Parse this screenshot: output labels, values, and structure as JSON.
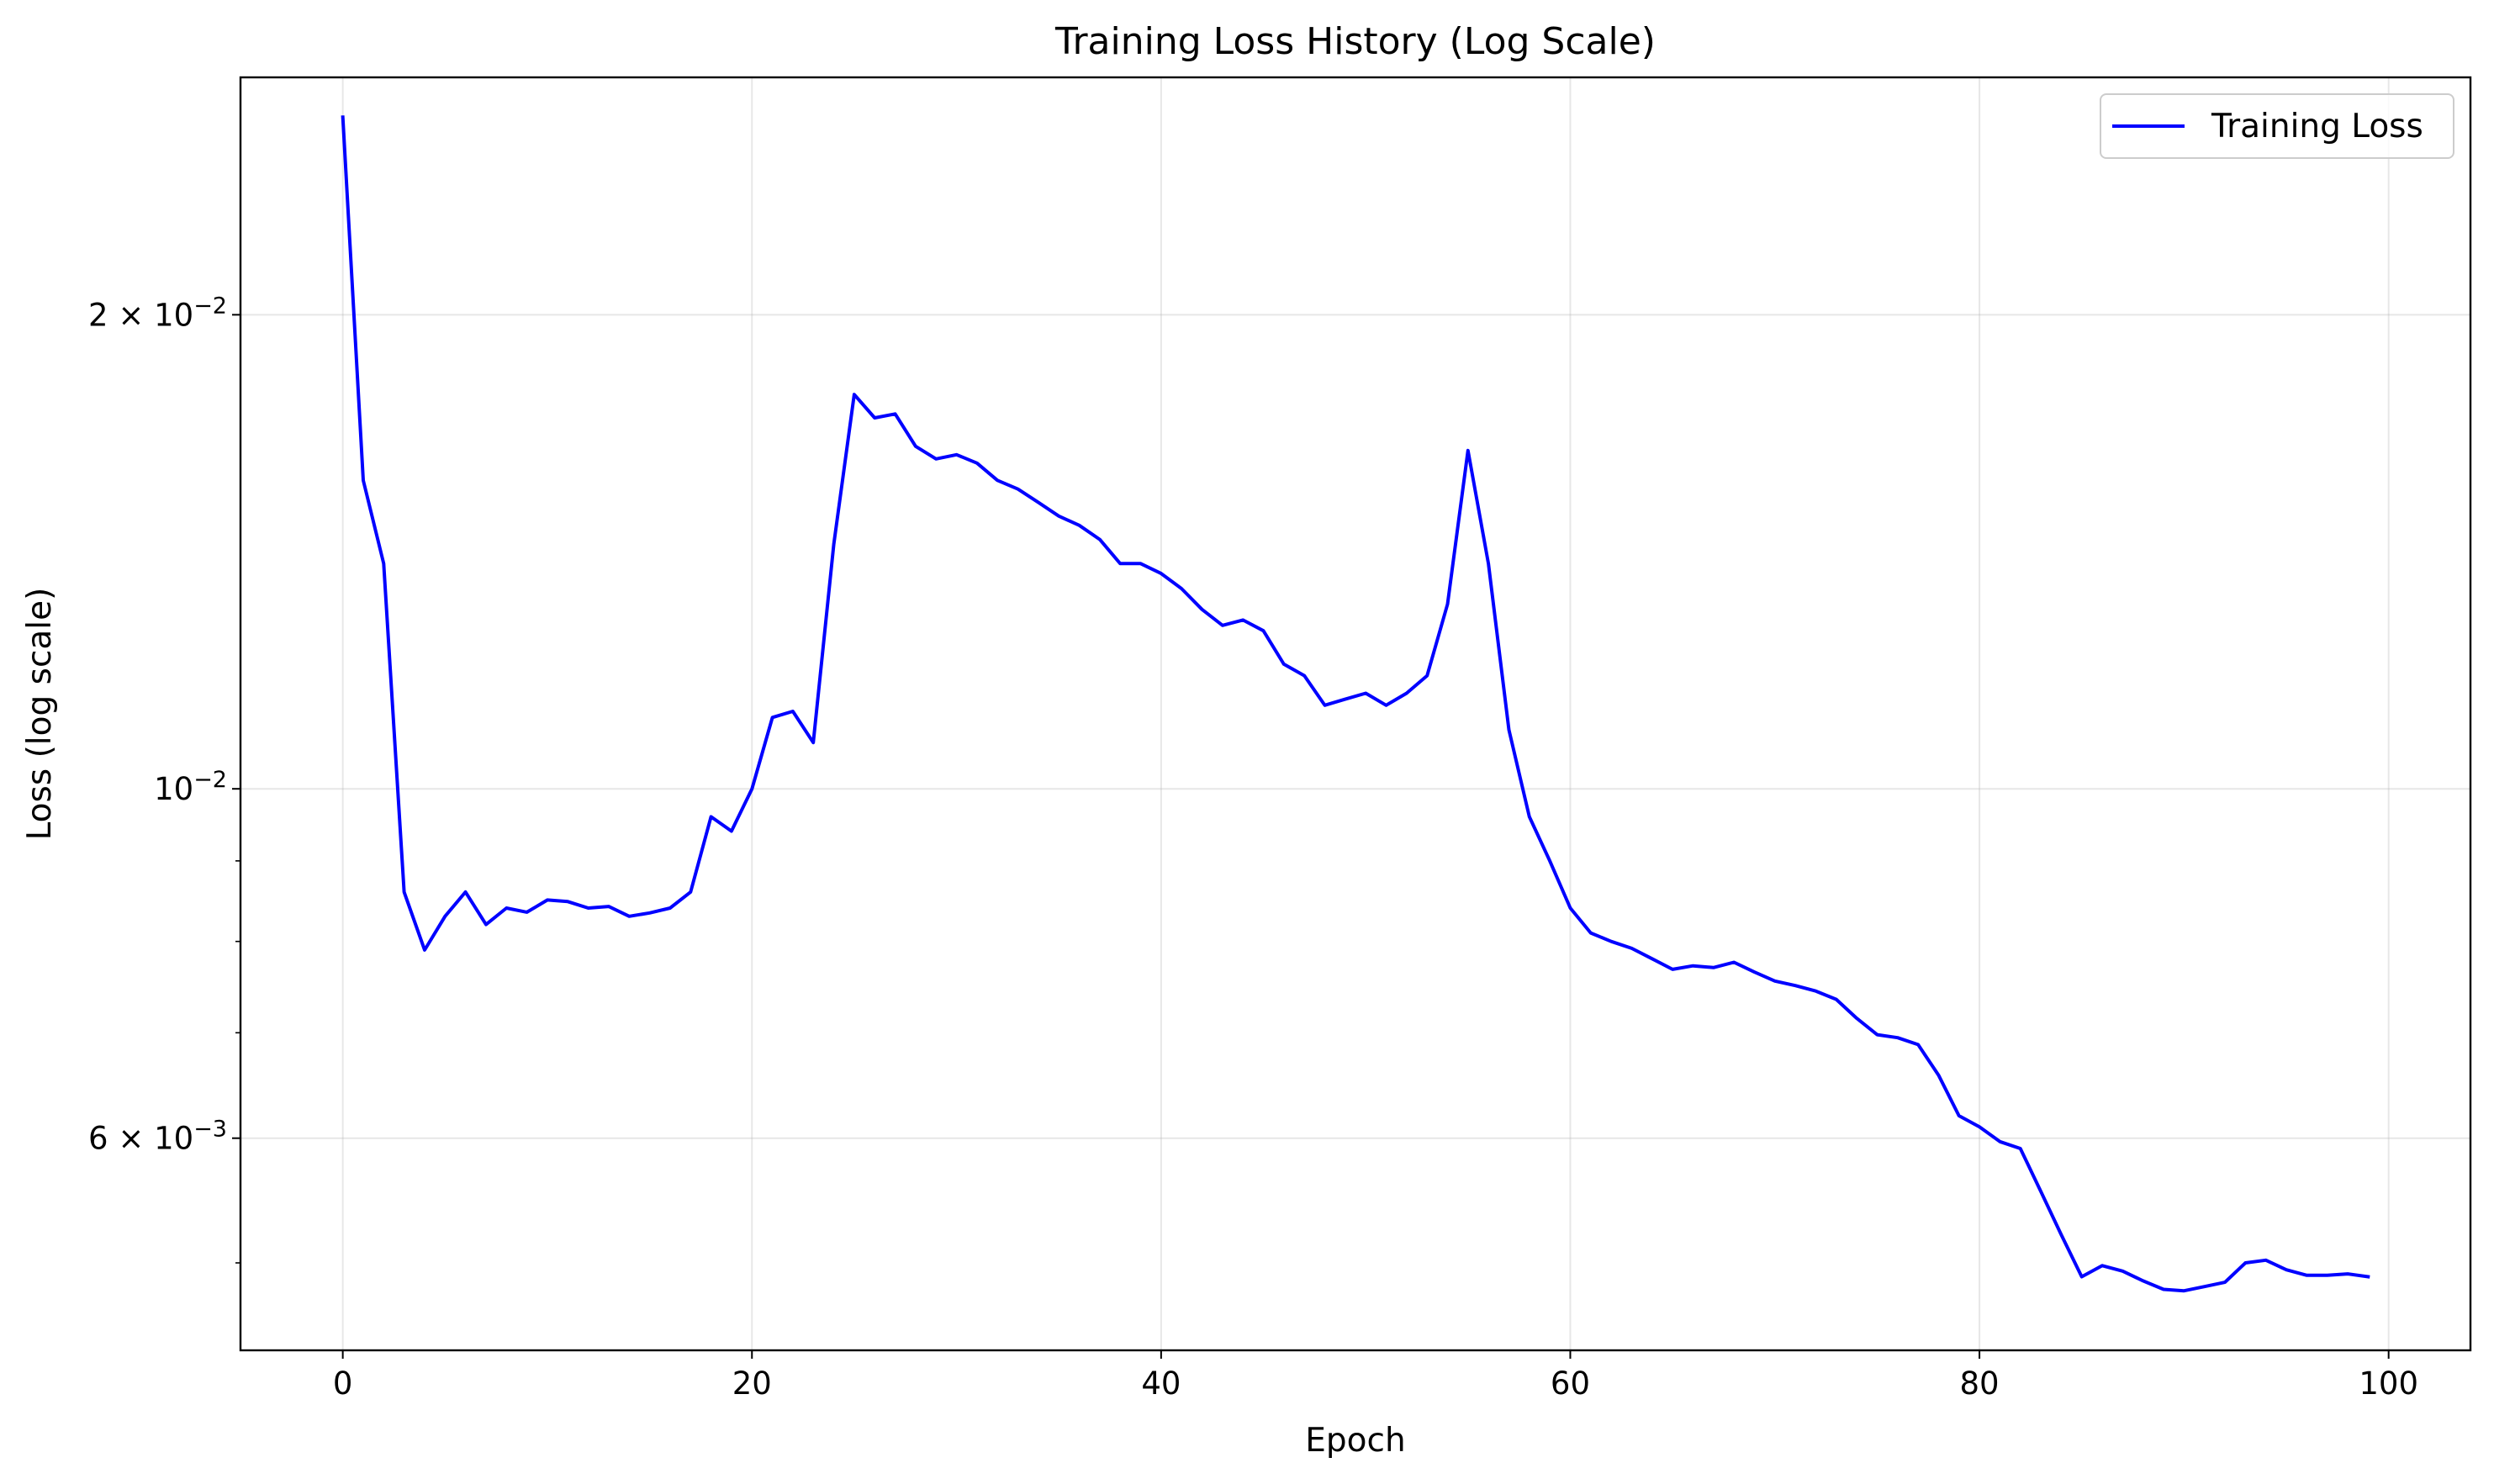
{
  "chart_data": {
    "type": "line",
    "title": "Training Loss History (Log Scale)",
    "xlabel": "Epoch",
    "ylabel": "Loss (log scale)",
    "xlim": [
      -5,
      104
    ],
    "ylim": [
      0.0044,
      0.0283
    ],
    "yscale": "log",
    "grid": true,
    "legend_position": "top-right",
    "x_ticks": [
      0,
      20,
      40,
      60,
      80,
      100
    ],
    "y_ticks": [
      {
        "value": 0.02,
        "mantissa": "2",
        "exponent": "−2"
      },
      {
        "value": 0.01,
        "mantissa": "",
        "exponent": "−2"
      },
      {
        "value": 0.006,
        "mantissa": "6",
        "exponent": "−3"
      }
    ],
    "y_minor_ticks": [
      0.005,
      0.007,
      0.008,
      0.009
    ],
    "series": [
      {
        "name": "Training Loss",
        "color": "#0000ff",
        "x": [
          0,
          1,
          2,
          3,
          4,
          5,
          6,
          7,
          8,
          9,
          10,
          11,
          12,
          13,
          14,
          15,
          16,
          17,
          18,
          19,
          20,
          21,
          22,
          23,
          24,
          25,
          26,
          27,
          28,
          29,
          30,
          31,
          32,
          33,
          34,
          35,
          36,
          37,
          38,
          39,
          40,
          41,
          42,
          43,
          44,
          45,
          46,
          47,
          48,
          49,
          50,
          51,
          52,
          53,
          54,
          55,
          56,
          57,
          58,
          59,
          60,
          61,
          62,
          63,
          64,
          65,
          66,
          67,
          68,
          69,
          70,
          71,
          72,
          73,
          74,
          75,
          76,
          77,
          78,
          79,
          80,
          81,
          82,
          83,
          84,
          85,
          86,
          87,
          88,
          89,
          90,
          91,
          92,
          93,
          94,
          95,
          96,
          97,
          98,
          99
        ],
        "values": [
          0.0267,
          0.0157,
          0.0139,
          0.0086,
          0.0079,
          0.0083,
          0.0086,
          0.0082,
          0.0084,
          0.00835,
          0.0085,
          0.00848,
          0.0084,
          0.00842,
          0.0083,
          0.00834,
          0.0084,
          0.0086,
          0.0096,
          0.0094,
          0.01,
          0.0111,
          0.0112,
          0.0107,
          0.0143,
          0.0178,
          0.0172,
          0.0173,
          0.0165,
          0.0162,
          0.0163,
          0.0161,
          0.0157,
          0.0155,
          0.0152,
          0.0149,
          0.0147,
          0.0144,
          0.0139,
          0.0139,
          0.0137,
          0.0134,
          0.013,
          0.0127,
          0.0128,
          0.0126,
          0.012,
          0.0118,
          0.0113,
          0.0114,
          0.0115,
          0.0113,
          0.0115,
          0.0118,
          0.0131,
          0.0164,
          0.0139,
          0.0109,
          0.0096,
          0.009,
          0.0084,
          0.0081,
          0.008,
          0.00792,
          0.0078,
          0.00768,
          0.00772,
          0.0077,
          0.00776,
          0.00765,
          0.00755,
          0.0075,
          0.00744,
          0.00735,
          0.00715,
          0.00698,
          0.00695,
          0.00688,
          0.00658,
          0.0062,
          0.0061,
          0.00597,
          0.00591,
          0.00555,
          0.00521,
          0.0049,
          0.00498,
          0.00494,
          0.00487,
          0.00481,
          0.0048,
          0.00483,
          0.00486,
          0.005,
          0.00502,
          0.00495,
          0.00491,
          0.00491,
          0.00492,
          0.0049
        ]
      }
    ]
  }
}
